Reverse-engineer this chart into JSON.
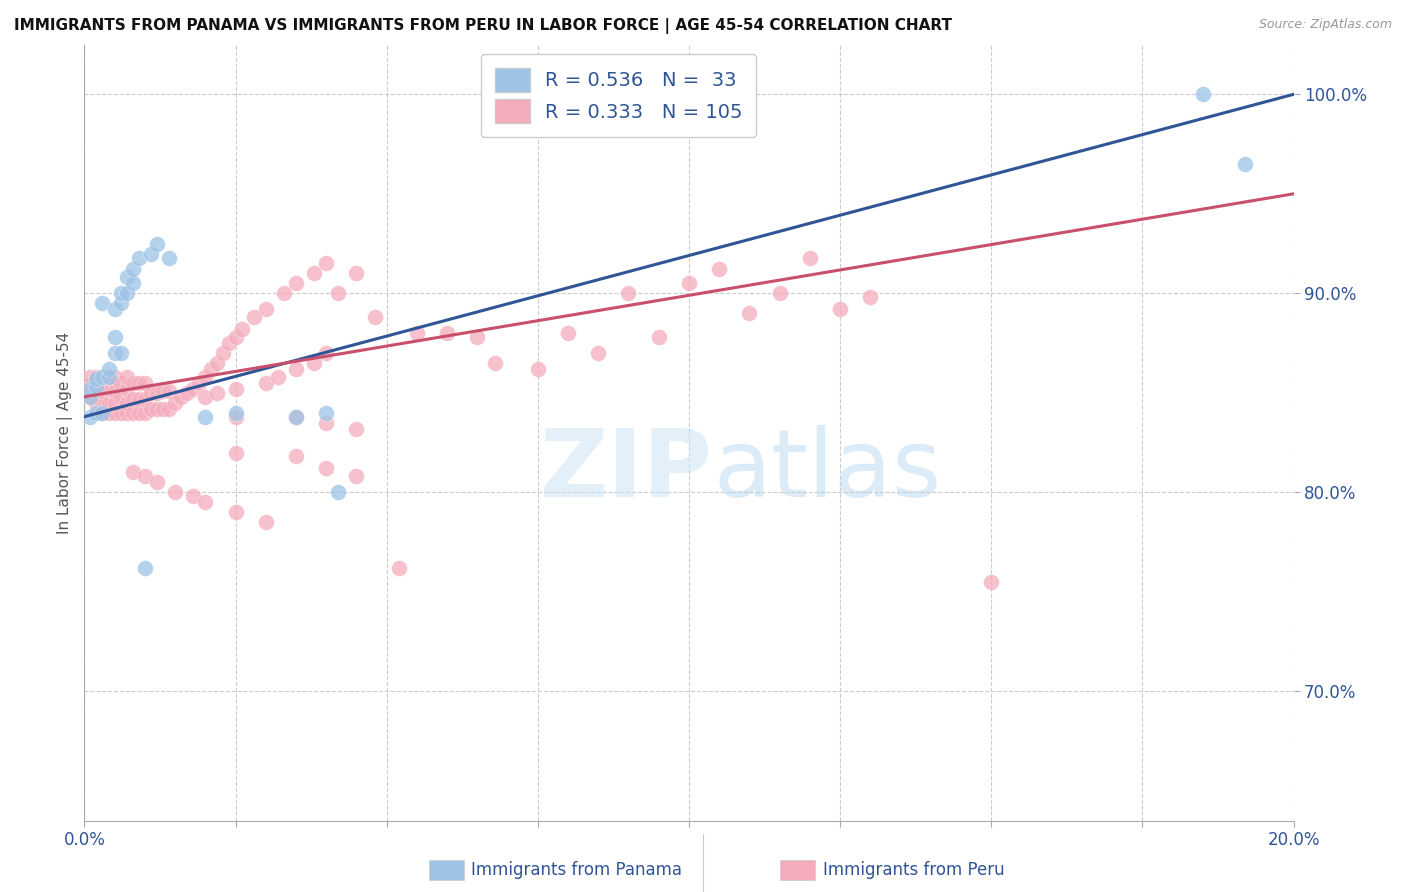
{
  "title": "IMMIGRANTS FROM PANAMA VS IMMIGRANTS FROM PERU IN LABOR FORCE | AGE 45-54 CORRELATION CHART",
  "source": "Source: ZipAtlas.com",
  "ylabel": "In Labor Force | Age 45-54",
  "xlim": [
    0.0,
    0.2
  ],
  "ylim": [
    0.635,
    1.025
  ],
  "legend_R_panama": "0.536",
  "legend_N_panama": "33",
  "legend_R_peru": "0.333",
  "legend_N_peru": "105",
  "color_panama": "#9DC3E6",
  "color_peru": "#F4ACBB",
  "color_line_panama": "#2F5597",
  "color_line_peru": "#C9506A",
  "color_blue": "#2F5597",
  "color_gray": "#888888",
  "panama_x": [
    0.001,
    0.001,
    0.002,
    0.002,
    0.003,
    0.003,
    0.004,
    0.004,
    0.005,
    0.005,
    0.005,
    0.006,
    0.006,
    0.006,
    0.007,
    0.007,
    0.008,
    0.008,
    0.009,
    0.01,
    0.011,
    0.012,
    0.014,
    0.02,
    0.025,
    0.035,
    0.04,
    0.042,
    0.001,
    0.002,
    0.003,
    0.185,
    0.192
  ],
  "panama_y": [
    0.848,
    0.852,
    0.853,
    0.857,
    0.858,
    0.895,
    0.858,
    0.862,
    0.87,
    0.878,
    0.892,
    0.87,
    0.895,
    0.9,
    0.9,
    0.908,
    0.905,
    0.912,
    0.918,
    0.762,
    0.92,
    0.925,
    0.918,
    0.838,
    0.84,
    0.838,
    0.84,
    0.8,
    0.838,
    0.84,
    0.84,
    1.0,
    0.965
  ],
  "peru_x": [
    0.001,
    0.001,
    0.001,
    0.002,
    0.002,
    0.002,
    0.003,
    0.003,
    0.003,
    0.003,
    0.004,
    0.004,
    0.004,
    0.004,
    0.005,
    0.005,
    0.005,
    0.005,
    0.006,
    0.006,
    0.006,
    0.007,
    0.007,
    0.007,
    0.007,
    0.008,
    0.008,
    0.008,
    0.009,
    0.009,
    0.009,
    0.01,
    0.01,
    0.01,
    0.011,
    0.011,
    0.012,
    0.012,
    0.013,
    0.013,
    0.014,
    0.014,
    0.015,
    0.016,
    0.017,
    0.018,
    0.019,
    0.02,
    0.021,
    0.022,
    0.023,
    0.024,
    0.025,
    0.026,
    0.028,
    0.03,
    0.033,
    0.035,
    0.038,
    0.04,
    0.042,
    0.045,
    0.048,
    0.052,
    0.055,
    0.06,
    0.065,
    0.068,
    0.075,
    0.08,
    0.085,
    0.09,
    0.095,
    0.1,
    0.105,
    0.11,
    0.115,
    0.12,
    0.125,
    0.13,
    0.008,
    0.01,
    0.012,
    0.015,
    0.018,
    0.02,
    0.025,
    0.03,
    0.025,
    0.035,
    0.04,
    0.045,
    0.025,
    0.035,
    0.04,
    0.045,
    0.02,
    0.022,
    0.025,
    0.03,
    0.032,
    0.035,
    0.038,
    0.04,
    0.15
  ],
  "peru_y": [
    0.848,
    0.854,
    0.858,
    0.845,
    0.851,
    0.858,
    0.84,
    0.845,
    0.851,
    0.858,
    0.84,
    0.845,
    0.852,
    0.858,
    0.84,
    0.845,
    0.851,
    0.858,
    0.84,
    0.848,
    0.855,
    0.84,
    0.845,
    0.852,
    0.858,
    0.84,
    0.847,
    0.855,
    0.84,
    0.847,
    0.855,
    0.84,
    0.847,
    0.855,
    0.842,
    0.85,
    0.842,
    0.85,
    0.842,
    0.851,
    0.842,
    0.851,
    0.845,
    0.848,
    0.85,
    0.852,
    0.855,
    0.858,
    0.862,
    0.865,
    0.87,
    0.875,
    0.878,
    0.882,
    0.888,
    0.892,
    0.9,
    0.905,
    0.91,
    0.915,
    0.9,
    0.91,
    0.888,
    0.762,
    0.88,
    0.88,
    0.878,
    0.865,
    0.862,
    0.88,
    0.87,
    0.9,
    0.878,
    0.905,
    0.912,
    0.89,
    0.9,
    0.918,
    0.892,
    0.898,
    0.81,
    0.808,
    0.805,
    0.8,
    0.798,
    0.795,
    0.79,
    0.785,
    0.82,
    0.818,
    0.812,
    0.808,
    0.838,
    0.838,
    0.835,
    0.832,
    0.848,
    0.85,
    0.852,
    0.855,
    0.858,
    0.862,
    0.865,
    0.87,
    0.755
  ],
  "panama_line_y0": 0.838,
  "panama_line_y1": 1.0,
  "peru_line_y0": 0.848,
  "peru_line_y1": 0.95
}
